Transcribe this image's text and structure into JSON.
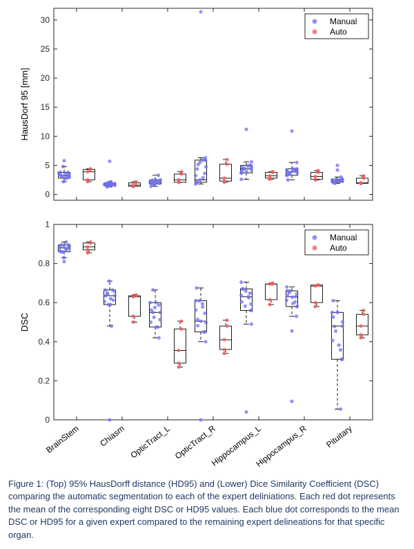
{
  "caption": "Figure 1: (Top) 95% HausDorff distance (HD95) and (Lower) Dice Similarity Coefficient (DSC) comparing the automatic segmentation to each of the expert deliniations. Each red dot represents the mean of the corresponding eight DSC or HD95 values. Each blue dot corresponds to the mean DSC or HD95 for a given expert compared to the remaining expert delineations for that specific organ.",
  "colors": {
    "manual": "#6f6ff2",
    "auto": "#ef5a5a",
    "box": "#1a1a1a",
    "axis": "#262626"
  },
  "chart_data": [
    {
      "type": "box",
      "title": "",
      "ylabel": "HausDorf 95 [mm]",
      "xlabel": "",
      "ylim": [
        -1,
        32
      ],
      "yticks": [
        0,
        5,
        10,
        15,
        20,
        25,
        30
      ],
      "grid": false,
      "legend": {
        "position": "top-right",
        "entries": [
          "Manual",
          "Auto"
        ]
      },
      "categories": [
        "BrainStem",
        "Chiasm",
        "OpticTract_L",
        "OpticTract_R",
        "Hippocampus_L",
        "Hippocampus_R",
        "Pituitary"
      ],
      "series": [
        {
          "name": "Manual",
          "boxes": [
            {
              "min": 2.2,
              "q1": 2.8,
              "median": 3.2,
              "q3": 3.8,
              "max": 4.8,
              "outliers": [
                5.8
              ]
            },
            {
              "min": 1.3,
              "q1": 1.5,
              "median": 1.7,
              "q3": 1.9,
              "max": 2.2,
              "outliers": [
                5.7
              ]
            },
            {
              "min": 1.4,
              "q1": 1.8,
              "median": 2.1,
              "q3": 2.5,
              "max": 3.3,
              "outliers": []
            },
            {
              "min": 1.8,
              "q1": 2.1,
              "median": 2.5,
              "q3": 5.9,
              "max": 6.3,
              "outliers": [
                31.4
              ]
            },
            {
              "min": 2.6,
              "q1": 3.7,
              "median": 4.4,
              "q3": 5.0,
              "max": 5.6,
              "outliers": [
                11.2
              ]
            },
            {
              "min": 2.5,
              "q1": 3.3,
              "median": 3.9,
              "q3": 4.4,
              "max": 5.5,
              "outliers": [
                10.9
              ]
            },
            {
              "min": 1.9,
              "q1": 2.1,
              "median": 2.3,
              "q3": 2.6,
              "max": 3.0,
              "outliers": [
                4.2,
                5.0
              ]
            }
          ]
        },
        {
          "name": "Auto",
          "boxes": [
            {
              "min": 2.2,
              "q1": 2.5,
              "median": 3.9,
              "q3": 4.3,
              "max": 4.4,
              "outliers": []
            },
            {
              "min": 1.4,
              "q1": 1.4,
              "median": 1.6,
              "q3": 2.0,
              "max": 2.2,
              "outliers": []
            },
            {
              "min": 2.1,
              "q1": 2.1,
              "median": 2.5,
              "q3": 3.5,
              "max": 3.9,
              "outliers": []
            },
            {
              "min": 2.1,
              "q1": 2.3,
              "median": 2.8,
              "q3": 5.2,
              "max": 6.0,
              "outliers": []
            },
            {
              "min": 2.6,
              "q1": 2.8,
              "median": 3.2,
              "q3": 3.8,
              "max": 3.9,
              "outliers": []
            },
            {
              "min": 2.5,
              "q1": 2.6,
              "median": 3.1,
              "q3": 3.8,
              "max": 4.1,
              "outliers": []
            },
            {
              "min": 1.9,
              "q1": 1.9,
              "median": 2.0,
              "q3": 2.8,
              "max": 3.2,
              "outliers": []
            }
          ]
        }
      ]
    },
    {
      "type": "box",
      "title": "",
      "ylabel": "DSC",
      "xlabel": "",
      "ylim": [
        0,
        1
      ],
      "yticks": [
        0,
        0.2,
        0.4,
        0.6,
        0.8,
        1
      ],
      "grid": false,
      "legend": {
        "position": "top-right",
        "entries": [
          "Manual",
          "Auto"
        ]
      },
      "categories": [
        "BrainStem",
        "Chiasm",
        "OpticTract_L",
        "OpticTract_R",
        "Hippocampus_L",
        "Hippocampus_R",
        "Pituitary"
      ],
      "series": [
        {
          "name": "Manual",
          "boxes": [
            {
              "min": 0.83,
              "q1": 0.86,
              "median": 0.88,
              "q3": 0.895,
              "max": 0.91,
              "outliers": [
                0.81
              ]
            },
            {
              "min": 0.48,
              "q1": 0.59,
              "median": 0.635,
              "q3": 0.665,
              "max": 0.71,
              "outliers": [
                0.0
              ]
            },
            {
              "min": 0.42,
              "q1": 0.475,
              "median": 0.55,
              "q3": 0.6,
              "max": 0.665,
              "outliers": []
            },
            {
              "min": 0.4,
              "q1": 0.45,
              "median": 0.505,
              "q3": 0.61,
              "max": 0.675,
              "outliers": [
                0.0
              ]
            },
            {
              "min": 0.49,
              "q1": 0.56,
              "median": 0.63,
              "q3": 0.67,
              "max": 0.705,
              "outliers": [
                0.04
              ]
            },
            {
              "min": 0.53,
              "q1": 0.58,
              "median": 0.63,
              "q3": 0.66,
              "max": 0.68,
              "outliers": [
                0.455,
                0.095
              ]
            },
            {
              "min": 0.055,
              "q1": 0.31,
              "median": 0.48,
              "q3": 0.55,
              "max": 0.61,
              "outliers": []
            }
          ]
        },
        {
          "name": "Auto",
          "boxes": [
            {
              "min": 0.855,
              "q1": 0.87,
              "median": 0.885,
              "q3": 0.905,
              "max": 0.91,
              "outliers": []
            },
            {
              "min": 0.5,
              "q1": 0.53,
              "median": 0.63,
              "q3": 0.635,
              "max": 0.64,
              "outliers": []
            },
            {
              "min": 0.27,
              "q1": 0.29,
              "median": 0.355,
              "q3": 0.465,
              "max": 0.505,
              "outliers": []
            },
            {
              "min": 0.34,
              "q1": 0.36,
              "median": 0.41,
              "q3": 0.48,
              "max": 0.51,
              "outliers": []
            },
            {
              "min": 0.59,
              "q1": 0.615,
              "median": 0.695,
              "q3": 0.695,
              "max": 0.7,
              "outliers": []
            },
            {
              "min": 0.58,
              "q1": 0.6,
              "median": 0.685,
              "q3": 0.69,
              "max": 0.69,
              "outliers": []
            },
            {
              "min": 0.42,
              "q1": 0.435,
              "median": 0.48,
              "q3": 0.54,
              "max": 0.56,
              "outliers": []
            }
          ]
        }
      ]
    }
  ]
}
